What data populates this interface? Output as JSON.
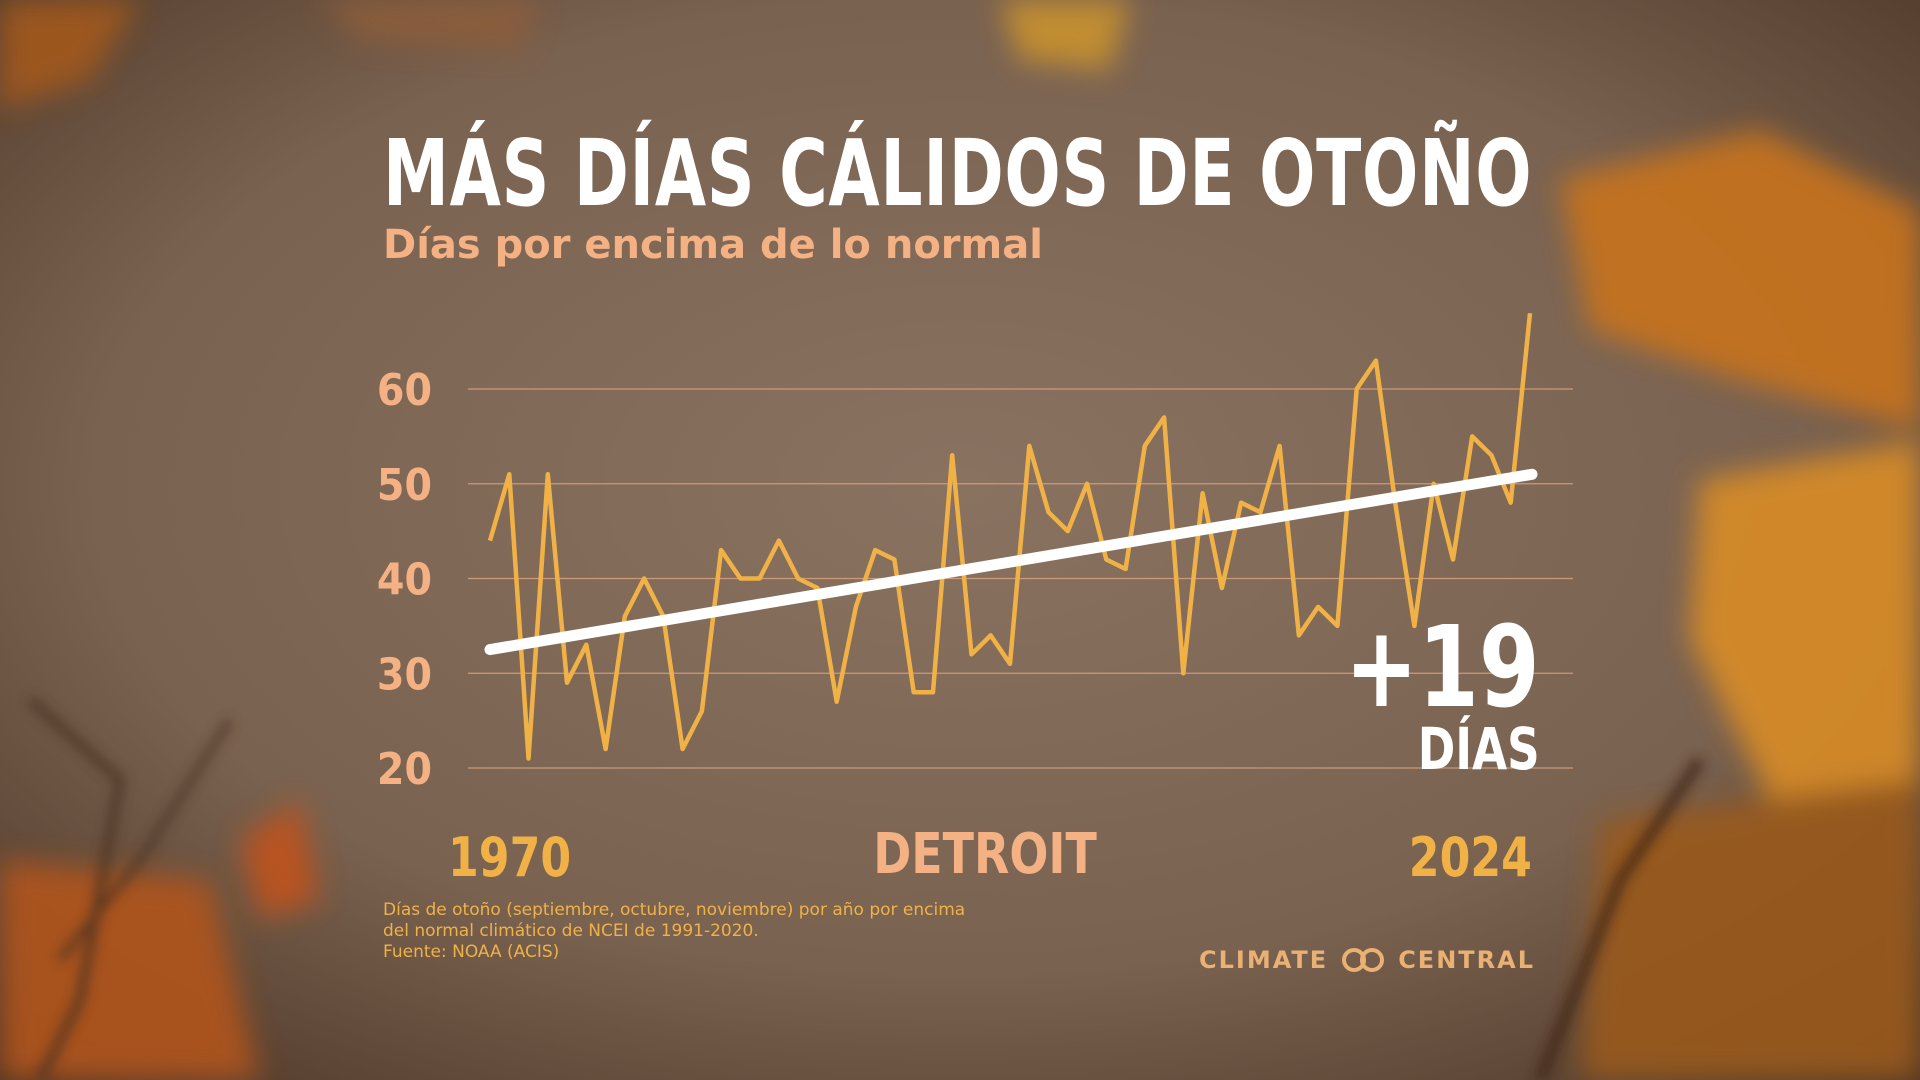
{
  "header": {
    "title": "MÁS DÍAS CÁLIDOS DE OTOÑO",
    "subtitle": "Días por encima de lo normal"
  },
  "location": "DETROIT",
  "change": {
    "value": "+19",
    "unit": "DÍAS"
  },
  "footnote": {
    "line1": "Días de otoño (septiembre, octubre, noviembre) por año por encima",
    "line2": "del normal climático de NCEI de 1991-2020.",
    "line3": "Fuente: NOAA (ACIS)"
  },
  "brand": {
    "left": "CLIMATE",
    "right": "CENTRAL",
    "logo_icon": "linked-circles-icon"
  },
  "colors": {
    "series": "#f0b247",
    "trend": "#ffffff",
    "grid": "#d8a37f",
    "label": "#f4b184"
  },
  "chart_data": {
    "type": "line",
    "x_start_label": "1970",
    "x_end_label": "2024",
    "ylim": [
      20,
      65
    ],
    "yticks": [
      20,
      30,
      40,
      50,
      60
    ],
    "grid": true,
    "x": [
      1970,
      1971,
      1972,
      1973,
      1974,
      1975,
      1976,
      1977,
      1978,
      1979,
      1980,
      1981,
      1982,
      1983,
      1984,
      1985,
      1986,
      1987,
      1988,
      1989,
      1990,
      1991,
      1992,
      1993,
      1994,
      1995,
      1996,
      1997,
      1998,
      1999,
      2000,
      2001,
      2002,
      2003,
      2004,
      2005,
      2006,
      2007,
      2008,
      2009,
      2010,
      2011,
      2012,
      2013,
      2014,
      2015,
      2016,
      2017,
      2018,
      2019,
      2020,
      2021,
      2022,
      2023,
      2024
    ],
    "series": [
      {
        "values": [
          44,
          51,
          21,
          51,
          29,
          33,
          22,
          36,
          40,
          36,
          22,
          26,
          43,
          40,
          40,
          44,
          40,
          39,
          27,
          37,
          43,
          42,
          28,
          28,
          53,
          32,
          34,
          31,
          54,
          47,
          45,
          50,
          42,
          41,
          54,
          57,
          30,
          49,
          39,
          48,
          47,
          54,
          34,
          37,
          35,
          60,
          63,
          48,
          35,
          50,
          42,
          55,
          53,
          48,
          68
        ]
      },
      {
        "name_hidden": true,
        "trend_start": 32.5,
        "trend_end": 51.0
      }
    ]
  }
}
